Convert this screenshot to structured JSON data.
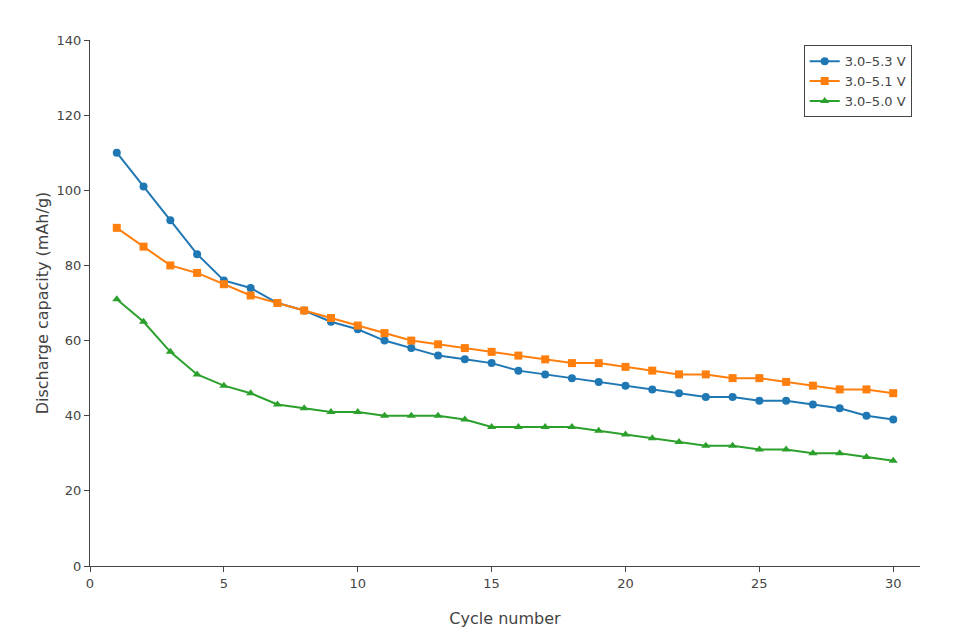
{
  "chart_data": {
    "type": "line",
    "x": [
      1,
      2,
      3,
      4,
      5,
      6,
      7,
      8,
      9,
      10,
      11,
      12,
      13,
      14,
      15,
      16,
      17,
      18,
      19,
      20,
      21,
      22,
      23,
      24,
      25,
      26,
      27,
      28,
      29,
      30
    ],
    "series": [
      {
        "name": "3.0–5.3 V",
        "marker": "circle",
        "values": [
          110,
          101,
          92,
          83,
          76,
          74,
          70,
          68,
          65,
          63,
          60,
          58,
          56,
          55,
          54,
          52,
          51,
          50,
          49,
          48,
          47,
          46,
          45,
          45,
          44,
          44,
          43,
          42,
          40,
          39
        ]
      },
      {
        "name": "3.0–5.1 V",
        "marker": "square",
        "values": [
          90,
          85,
          80,
          78,
          75,
          72,
          70,
          68,
          66,
          64,
          62,
          60,
          59,
          58,
          57,
          56,
          55,
          54,
          54,
          53,
          52,
          51,
          51,
          50,
          50,
          49,
          48,
          47,
          47,
          46
        ]
      },
      {
        "name": "3.0–5.0 V",
        "marker": "triangle",
        "values": [
          71,
          65,
          57,
          51,
          48,
          46,
          43,
          42,
          41,
          41,
          40,
          40,
          40,
          39,
          37,
          37,
          37,
          37,
          36,
          35,
          34,
          33,
          32,
          32,
          31,
          31,
          30,
          30,
          29,
          28
        ]
      }
    ],
    "x_label": "Cycle number",
    "y_label": "Discharge capacity (mAh/g)",
    "xlim": [
      0,
      31
    ],
    "ylim": [
      0,
      140
    ],
    "xticks": [
      0,
      5,
      10,
      15,
      20,
      25,
      30
    ],
    "yticks": [
      0,
      20,
      40,
      60,
      80,
      100,
      120,
      140
    ],
    "grid": false,
    "legend": "upper right"
  }
}
